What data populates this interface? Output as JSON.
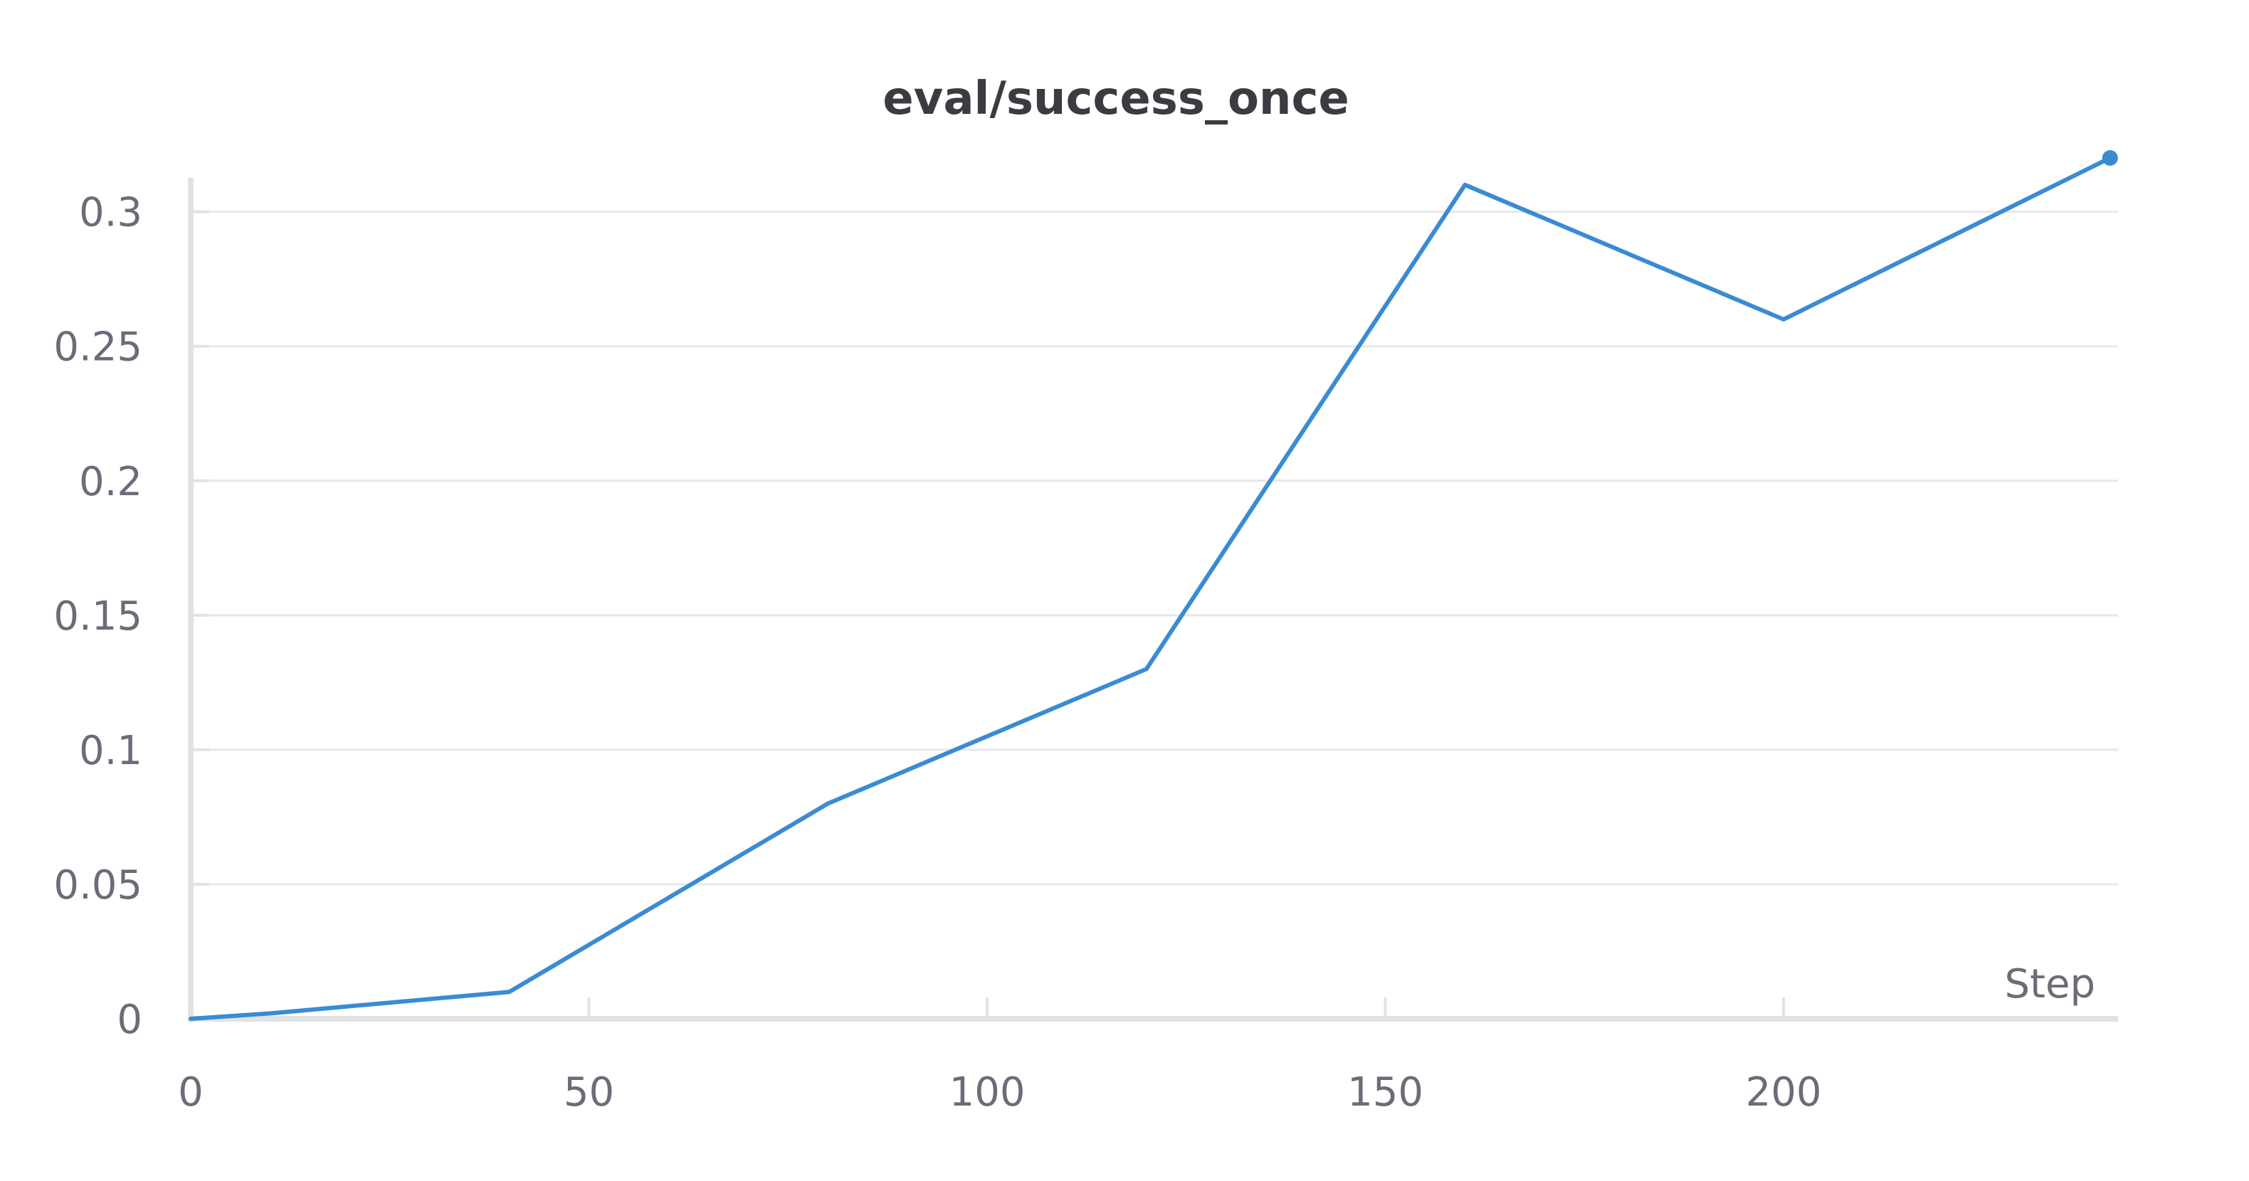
{
  "chart_data": {
    "type": "line",
    "title": "eval/success_once",
    "xlabel": "Step",
    "ylabel": "",
    "xlim": [
      0,
      242
    ],
    "ylim": [
      0,
      0.32
    ],
    "xticks": [
      0,
      50,
      100,
      150,
      200
    ],
    "xtick_labels": [
      "0",
      "50",
      "100",
      "150",
      "200"
    ],
    "yticks": [
      0,
      0.05,
      0.1,
      0.15,
      0.2,
      0.25,
      0.3
    ],
    "ytick_labels": [
      "0",
      "0.05",
      "0.1",
      "0.15",
      "0.2",
      "0.25",
      "0.3"
    ],
    "grid": true,
    "legend": "none",
    "series": [
      {
        "color": "#3a8bd4",
        "x": [
          0,
          10,
          40,
          80,
          120,
          160,
          200,
          241
        ],
        "y": [
          0,
          0.002,
          0.01,
          0.08,
          0.13,
          0.31,
          0.26,
          0.32
        ]
      }
    ]
  }
}
